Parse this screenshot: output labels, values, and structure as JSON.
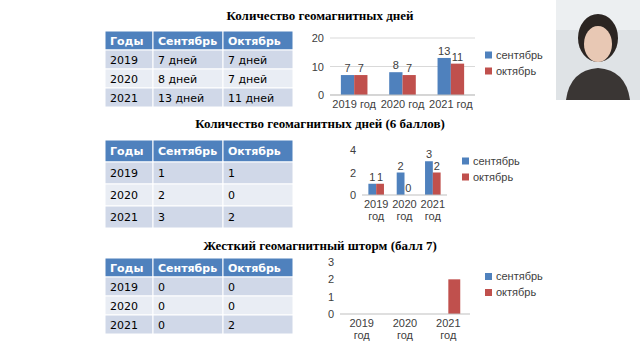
{
  "chart_data": [
    {
      "type": "bar",
      "title": "Количество геомагнитных дней",
      "categories": [
        "2019 год",
        "2020 год",
        "2021 год"
      ],
      "series": [
        {
          "name": "сентябрь",
          "color": "#4f81bd",
          "values": [
            7,
            8,
            13
          ]
        },
        {
          "name": "октябрь",
          "color": "#c0504d",
          "values": [
            7,
            7,
            11
          ]
        }
      ],
      "ylim": [
        0,
        20
      ],
      "yticks": [
        0,
        10,
        20
      ],
      "grid": true,
      "legend": "right",
      "data_labels": true
    },
    {
      "type": "bar",
      "title": "Количество геомагнитных дней (6 баллов)",
      "categories": [
        "2019 год",
        "2020 год",
        "2021 год"
      ],
      "series": [
        {
          "name": "сентябрь",
          "color": "#4f81bd",
          "values": [
            1,
            2,
            3
          ]
        },
        {
          "name": "октябрь",
          "color": "#c0504d",
          "values": [
            1,
            0,
            2
          ]
        }
      ],
      "ylim": [
        0,
        4
      ],
      "yticks": [
        0,
        2,
        4
      ],
      "grid": false,
      "legend": "right",
      "data_labels": true
    },
    {
      "type": "bar",
      "title": "Жесткий геомагнитный шторм (балл 7)",
      "categories": [
        "2019 год",
        "2020 год",
        "2021 год"
      ],
      "series": [
        {
          "name": "сентябрь",
          "color": "#4f81bd",
          "values": [
            0,
            0,
            0
          ]
        },
        {
          "name": "октябрь",
          "color": "#c0504d",
          "values": [
            0,
            0,
            2
          ]
        }
      ],
      "ylim": [
        0,
        3
      ],
      "yticks": [
        0,
        1,
        2,
        3
      ],
      "grid": false,
      "legend": "right",
      "data_labels": false
    }
  ],
  "tables": [
    {
      "header": [
        "Годы",
        "Сентябрь",
        "Октябрь"
      ],
      "rows": [
        [
          "2019",
          "7 дней",
          "7 дней"
        ],
        [
          "2020",
          "8 дней",
          "7 дней"
        ],
        [
          "2021",
          "13 дней",
          "11 дней"
        ]
      ]
    },
    {
      "header": [
        "Годы",
        "Сентябрь",
        "Октябрь"
      ],
      "rows": [
        [
          "2019",
          "1",
          "1"
        ],
        [
          "2020",
          "2",
          "0"
        ],
        [
          "2021",
          "3",
          "2"
        ]
      ]
    },
    {
      "header": [
        "Годы",
        "Сентябрь",
        "Октябрь"
      ],
      "rows": [
        [
          "2019",
          "0",
          "0"
        ],
        [
          "2020",
          "0",
          "0"
        ],
        [
          "2021",
          "0",
          "2"
        ]
      ]
    }
  ]
}
